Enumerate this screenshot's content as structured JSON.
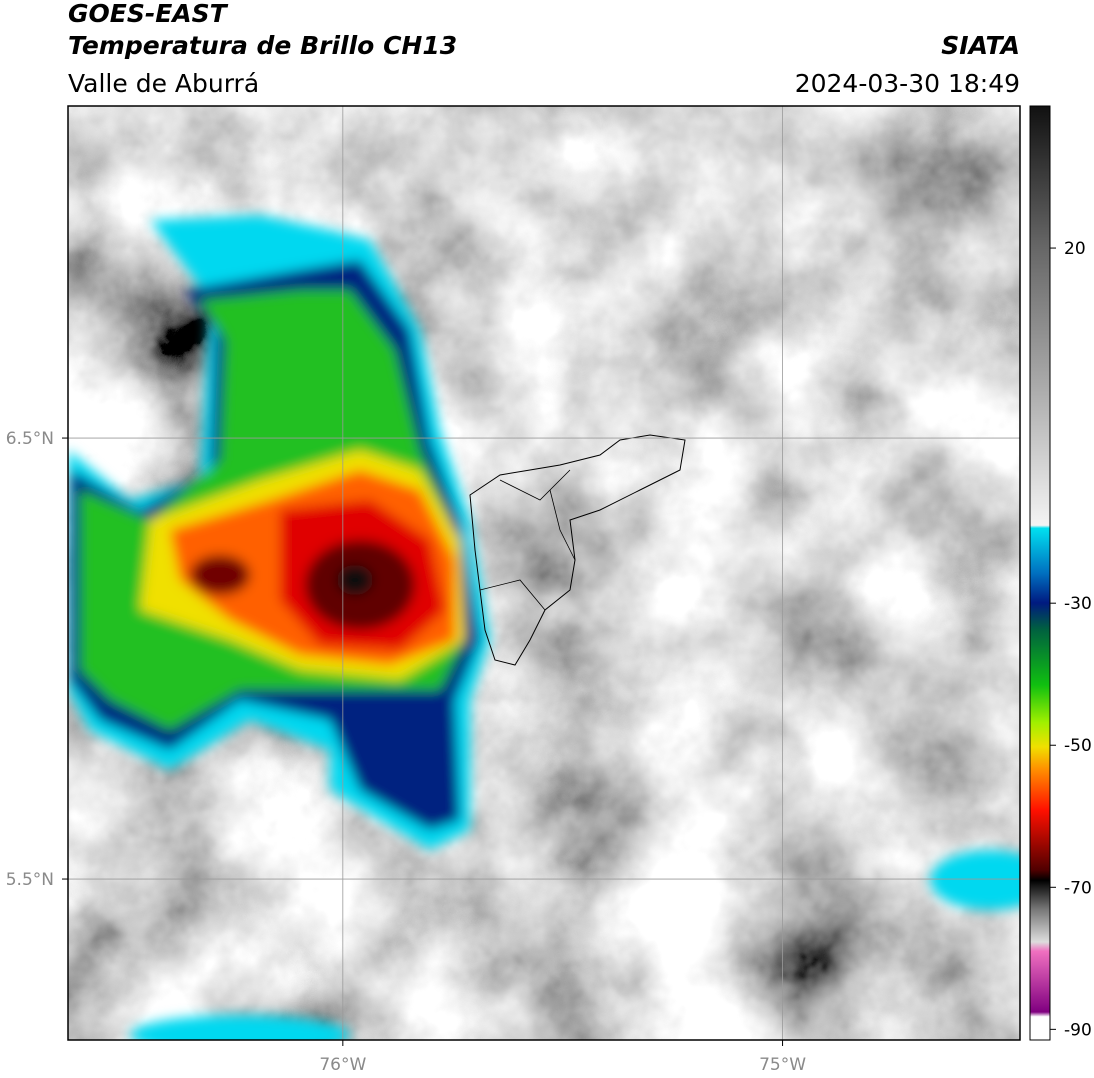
{
  "header": {
    "title": "GOES-EAST",
    "subtitle": "Temperatura de Brillo CH13",
    "region": "Valle de Aburrá",
    "source": "SIATA",
    "datetime": "2024-03-30 18:49"
  },
  "map": {
    "xlim": [
      -76.625,
      -74.46
    ],
    "ylim": [
      5.135,
      7.253
    ],
    "xticks": [
      {
        "value": -76,
        "label": "76°W"
      },
      {
        "value": -75,
        "label": "75°W"
      }
    ],
    "yticks": [
      {
        "value": 6.5,
        "label": "6.5°N"
      },
      {
        "value": 5.5,
        "label": "5.5°N"
      }
    ],
    "grid": true
  },
  "colorbar": {
    "lim": [
      -91.5,
      40
    ],
    "ticks": [
      20,
      -30,
      -50,
      -70,
      -90
    ]
  }
}
